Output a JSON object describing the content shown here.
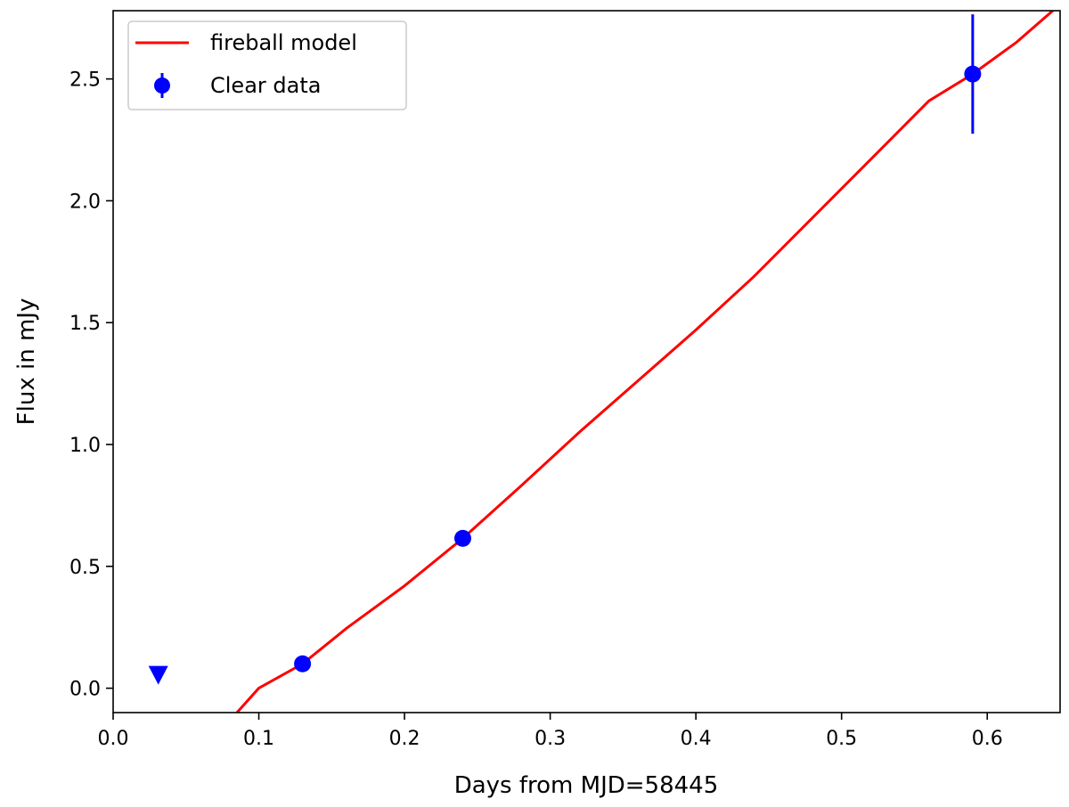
{
  "chart_data": {
    "type": "scatter",
    "title": "",
    "xlabel": "Days from MJD=58445",
    "ylabel": "Flux in mJy",
    "xlim": [
      0.0,
      0.65
    ],
    "ylim": [
      -0.1,
      2.78
    ],
    "xticks": [
      0.0,
      0.1,
      0.2,
      0.3,
      0.4,
      0.5,
      0.6
    ],
    "xtick_labels": [
      "0.0",
      "0.1",
      "0.2",
      "0.3",
      "0.4",
      "0.5",
      "0.6"
    ],
    "yticks": [
      0.0,
      0.5,
      1.0,
      1.5,
      2.0,
      2.5
    ],
    "ytick_labels": [
      "0.0",
      "0.5",
      "1.0",
      "1.5",
      "2.0",
      "2.5"
    ],
    "grid": false,
    "legend_position": "top-left",
    "series": [
      {
        "name": "fireball model",
        "kind": "line",
        "color": "#ff0000",
        "x": [
          0.085,
          0.1,
          0.13,
          0.16,
          0.2,
          0.24,
          0.28,
          0.32,
          0.36,
          0.4,
          0.44,
          0.48,
          0.52,
          0.56,
          0.59,
          0.62,
          0.645
        ],
        "y": [
          -0.1,
          0.0,
          0.1,
          0.245,
          0.42,
          0.615,
          0.83,
          1.05,
          1.26,
          1.47,
          1.69,
          1.93,
          2.17,
          2.41,
          2.52,
          2.65,
          2.78
        ]
      },
      {
        "name": "Clear data",
        "kind": "errorbar",
        "color": "#0000ff",
        "x": [
          0.13,
          0.24,
          0.59
        ],
        "y": [
          0.1,
          0.615,
          2.52
        ],
        "yerr": [
          0.0,
          0.0,
          0.245
        ]
      },
      {
        "kind": "upper-limit",
        "color": "#0000ff",
        "x": [
          0.031
        ],
        "y": [
          0.055
        ]
      }
    ]
  }
}
